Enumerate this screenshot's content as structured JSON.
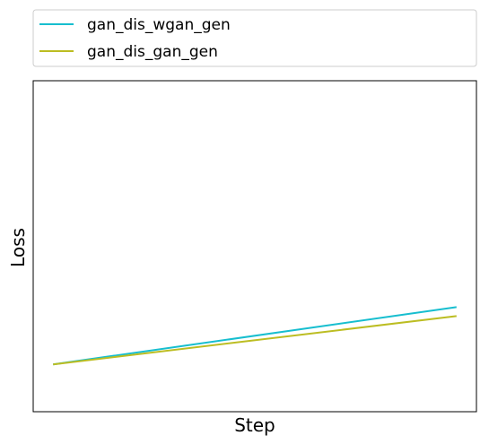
{
  "chart_data": {
    "type": "line",
    "title": "",
    "xlabel": "Step",
    "ylabel": "Loss",
    "x_ticks_visible": false,
    "y_ticks_visible": false,
    "grid": false,
    "legend_position": "above-plot",
    "xlim": [
      0,
      1
    ],
    "ylim": [
      0,
      1
    ],
    "x": [
      0,
      1
    ],
    "series": [
      {
        "name": "gan_dis_wgan_gen",
        "color": "#17becf",
        "values": [
          0.143,
          0.316
        ]
      },
      {
        "name": "gan_dis_gan_gen",
        "color": "#bcbd22",
        "values": [
          0.143,
          0.289
        ]
      }
    ]
  }
}
